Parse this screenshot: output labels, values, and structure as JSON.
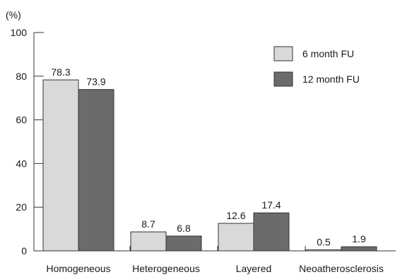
{
  "chart_data": {
    "type": "bar",
    "ylabel": "(%)",
    "ylim": [
      0,
      100
    ],
    "yticks": [
      "0",
      "20",
      "40",
      "60",
      "80",
      "100"
    ],
    "categories": [
      "Homogeneous",
      "Heterogeneous",
      "Layered",
      "Neoatherosclerosis"
    ],
    "series": [
      {
        "name": "6 month FU",
        "color": "#d9d9d9",
        "values": [
          78.3,
          8.7,
          12.6,
          0.5
        ],
        "labels": [
          "78.3",
          "8.7",
          "12.6",
          "0.5"
        ]
      },
      {
        "name": "12 month FU",
        "color": "#6b6b6b",
        "values": [
          73.9,
          6.8,
          17.4,
          1.9
        ],
        "labels": [
          "73.9",
          "6.8",
          "17.4",
          "1.9"
        ]
      }
    ],
    "legend_position": "top-right",
    "grid": false
  }
}
